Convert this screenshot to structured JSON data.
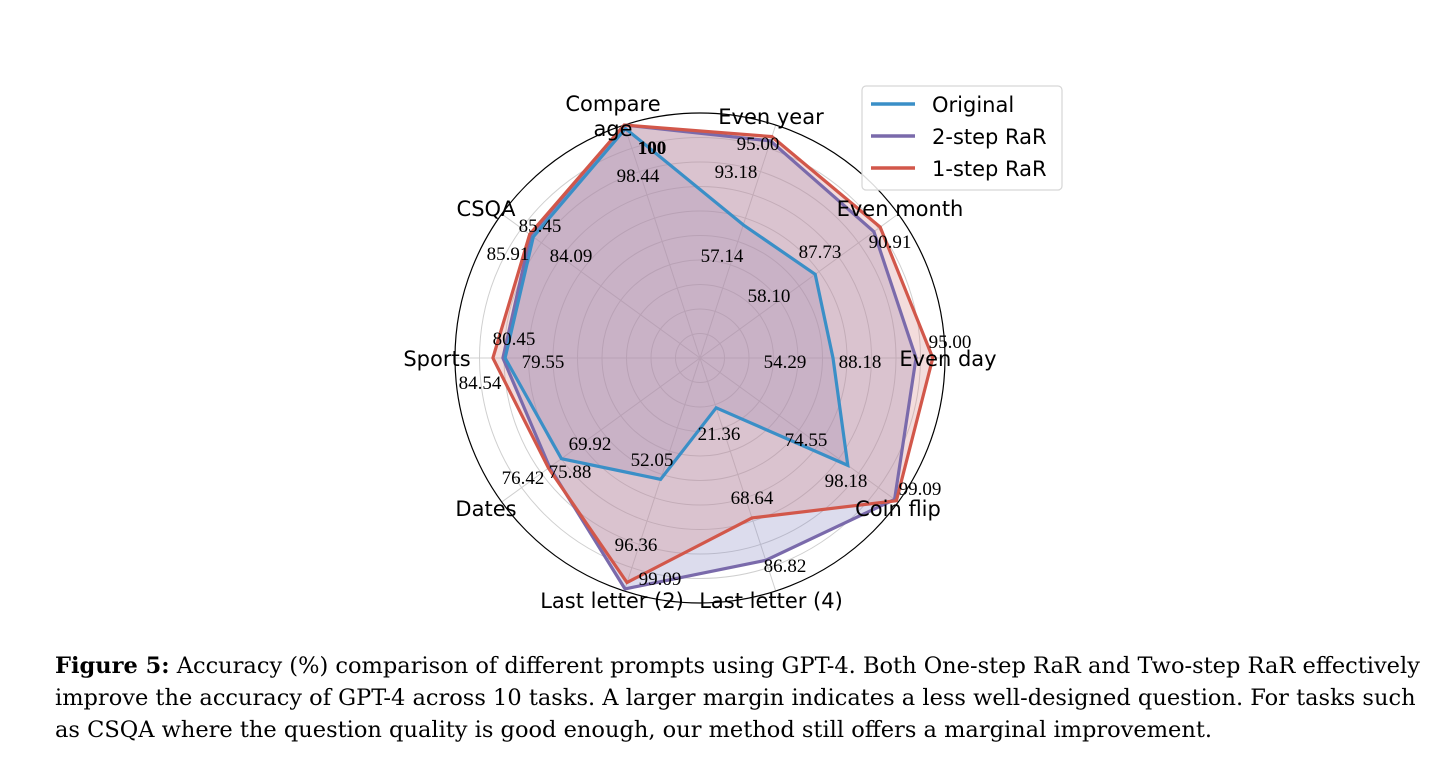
{
  "chart_data": {
    "type": "radar",
    "categories": [
      "Even day",
      "Even month",
      "Even year",
      "Compare age",
      "CSQA",
      "Sports",
      "Dates",
      "Last letter (2)",
      "Last letter (4)",
      "Coin flip"
    ],
    "category_lines": [
      [
        "Even day"
      ],
      [
        "Even month"
      ],
      [
        "Even year"
      ],
      [
        "Compare",
        "age"
      ],
      [
        "CSQA"
      ],
      [
        "Sports"
      ],
      [
        "Dates"
      ],
      [
        "Last letter (2)"
      ],
      [
        "Last letter (4)"
      ],
      [
        "Coin flip"
      ]
    ],
    "rlim": [
      0,
      100
    ],
    "grid": true,
    "legend_position": "top-right",
    "series": [
      {
        "name": "Original",
        "color": "#3a8fc7",
        "fill": "#8c8cc4",
        "values": [
          54.29,
          58.1,
          57.14,
          98.44,
          84.09,
          79.55,
          69.92,
          52.05,
          21.36,
          74.55
        ]
      },
      {
        "name": "2-step RaR",
        "color": "#7a6aab",
        "fill": "#8c8cc4",
        "values": [
          88.18,
          87.73,
          93.18,
          100,
          85.45,
          80.45,
          75.88,
          99.09,
          86.82,
          98.18
        ]
      },
      {
        "name": "1-step RaR",
        "color": "#d2574a",
        "fill": "#d88c8c",
        "values": [
          95.0,
          90.91,
          95.0,
          100,
          85.91,
          84.54,
          76.42,
          96.36,
          68.64,
          99.09
        ]
      }
    ],
    "data_labels": [
      {
        "text": "54.29",
        "axis": 0,
        "series": "Original"
      },
      {
        "text": "88.18",
        "axis": 0,
        "series": "2-step RaR"
      },
      {
        "text": "95.00",
        "axis": 0,
        "series": "1-step RaR"
      },
      {
        "text": "58.10",
        "axis": 1,
        "series": "Original"
      },
      {
        "text": "87.73",
        "axis": 1,
        "series": "2-step RaR"
      },
      {
        "text": "90.91",
        "axis": 1,
        "series": "1-step RaR"
      },
      {
        "text": "57.14",
        "axis": 2,
        "series": "Original"
      },
      {
        "text": "93.18",
        "axis": 2,
        "series": "2-step RaR"
      },
      {
        "text": "95.00",
        "axis": 2,
        "series": "1-step RaR"
      },
      {
        "text": "98.44",
        "axis": 3,
        "series": "Original"
      },
      {
        "text": "100",
        "axis": 3,
        "series": "2-step RaR"
      },
      {
        "text": "100",
        "axis": 3,
        "series": "1-step RaR"
      },
      {
        "text": "84.09",
        "axis": 4,
        "series": "Original"
      },
      {
        "text": "85.45",
        "axis": 4,
        "series": "2-step RaR"
      },
      {
        "text": "85.91",
        "axis": 4,
        "series": "1-step RaR"
      },
      {
        "text": "79.55",
        "axis": 5,
        "series": "Original"
      },
      {
        "text": "80.45",
        "axis": 5,
        "series": "2-step RaR"
      },
      {
        "text": "84.54",
        "axis": 5,
        "series": "1-step RaR"
      },
      {
        "text": "69.92",
        "axis": 6,
        "series": "Original"
      },
      {
        "text": "75.88",
        "axis": 6,
        "series": "2-step RaR"
      },
      {
        "text": "76.42",
        "axis": 6,
        "series": "1-step RaR"
      },
      {
        "text": "52.05",
        "axis": 7,
        "series": "Original"
      },
      {
        "text": "96.36",
        "axis": 7,
        "series": "1-step RaR"
      },
      {
        "text": "99.09",
        "axis": 7,
        "series": "2-step RaR"
      },
      {
        "text": "21.36",
        "axis": 8,
        "series": "Original"
      },
      {
        "text": "68.64",
        "axis": 8,
        "series": "1-step RaR"
      },
      {
        "text": "86.82",
        "axis": 8,
        "series": "2-step RaR"
      },
      {
        "text": "74.55",
        "axis": 9,
        "series": "Original"
      },
      {
        "text": "98.18",
        "axis": 9,
        "series": "2-step RaR"
      },
      {
        "text": "99.09",
        "axis": 9,
        "series": "1-step RaR"
      }
    ]
  },
  "caption": {
    "label": "Figure 5:",
    "text": "Accuracy (%) comparison of different prompts using GPT-4. Both One-step RaR and Two-step RaR effectively improve the accuracy of GPT-4 across 10 tasks. A larger margin indicates a less well-designed question. For tasks such as CSQA where the question quality is good enough, our method still offers a marginal improvement."
  }
}
